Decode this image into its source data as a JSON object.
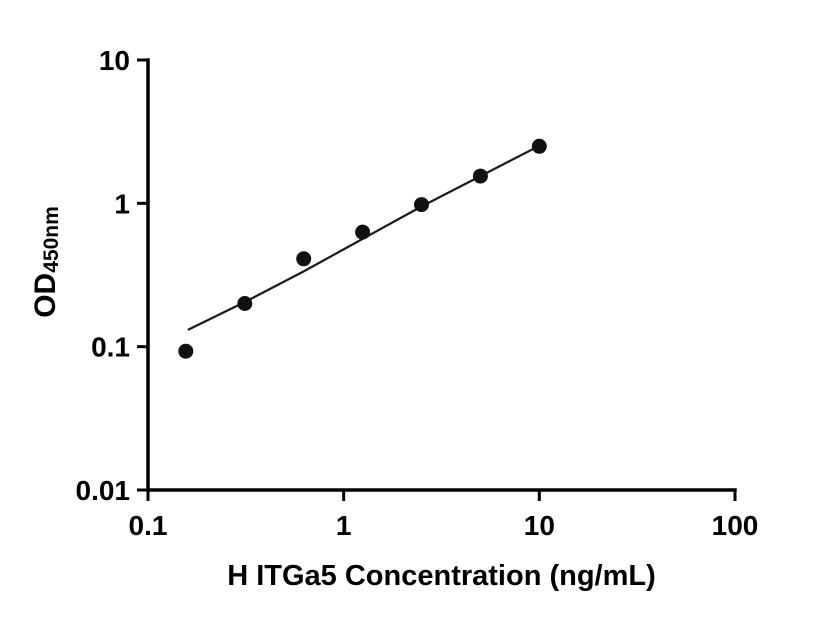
{
  "chart_data": {
    "type": "scatter",
    "title": "",
    "xlabel": "H ITGa5 Concentration (ng/mL)",
    "ylabel_main": "OD",
    "ylabel_sub": "450nm",
    "x_scale": "log",
    "y_scale": "log",
    "xlim": [
      0.1,
      100
    ],
    "ylim": [
      0.01,
      10
    ],
    "grid": false,
    "legend": "none",
    "x_ticks": [
      {
        "value": 0.1,
        "label": "0.1"
      },
      {
        "value": 1,
        "label": "1"
      },
      {
        "value": 10,
        "label": "10"
      },
      {
        "value": 100,
        "label": "100"
      }
    ],
    "y_ticks": [
      {
        "value": 0.01,
        "label": "0.01"
      },
      {
        "value": 0.1,
        "label": "0.1"
      },
      {
        "value": 1,
        "label": "1"
      },
      {
        "value": 10,
        "label": "10"
      }
    ],
    "points": [
      {
        "x": 0.156,
        "y": 0.093
      },
      {
        "x": 0.3125,
        "y": 0.2
      },
      {
        "x": 0.625,
        "y": 0.41
      },
      {
        "x": 1.25,
        "y": 0.63
      },
      {
        "x": 2.5,
        "y": 0.98
      },
      {
        "x": 5,
        "y": 1.55
      },
      {
        "x": 10,
        "y": 2.5
      }
    ],
    "trend_line": [
      [
        0.16,
        0.131
      ],
      [
        0.3125,
        0.205
      ],
      [
        0.625,
        0.335
      ],
      [
        1.25,
        0.565
      ],
      [
        2.5,
        0.95
      ],
      [
        5,
        1.55
      ],
      [
        10,
        2.52
      ]
    ],
    "point_color": "#111111",
    "point_radius": 7.5,
    "line_color": "#1a1a1a",
    "axis_color": "#000000",
    "text_color": "#000000"
  }
}
